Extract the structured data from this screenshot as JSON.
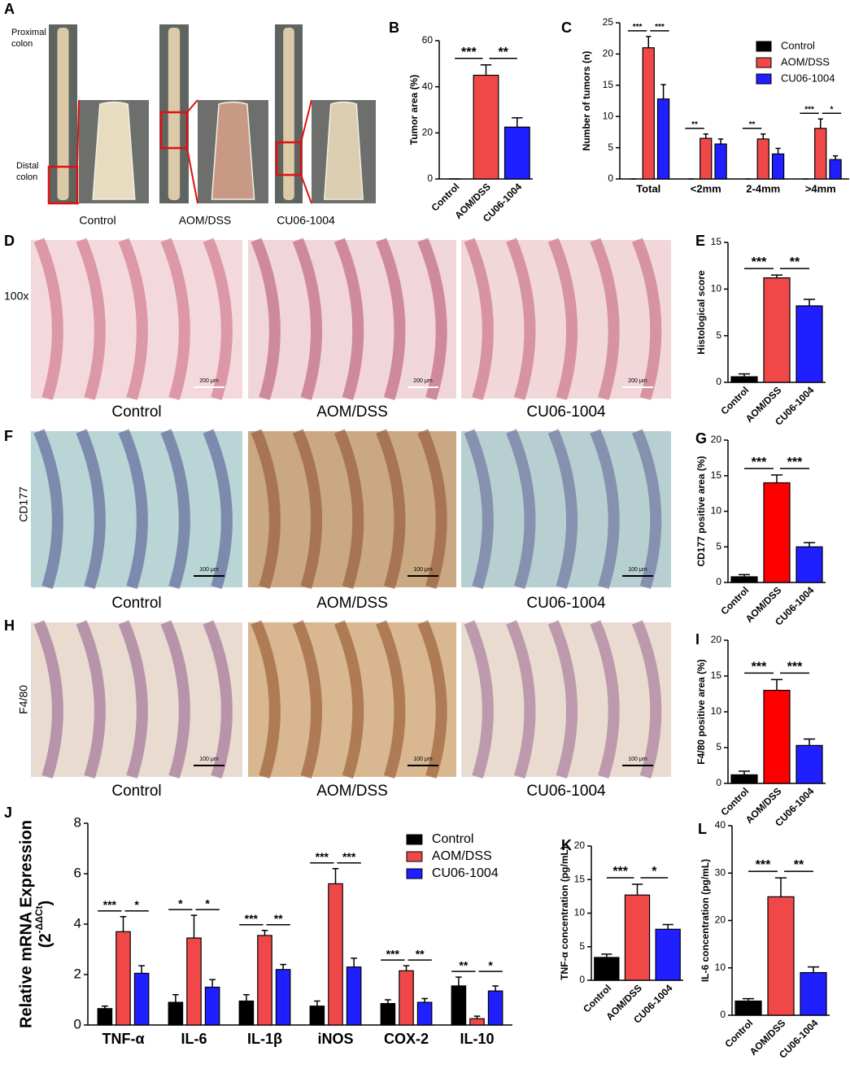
{
  "labels": [
    "A",
    "B",
    "C",
    "D",
    "E",
    "F",
    "G",
    "H",
    "I",
    "J",
    "K",
    "L"
  ],
  "panel_a": {
    "proximal": [
      "Proximal",
      "colon"
    ],
    "distal": [
      "Distal",
      "colon"
    ],
    "captions": [
      "Control",
      "AOM/DSS",
      "CU06-1004"
    ]
  },
  "panel_d": {
    "row_label": "100x",
    "captions": [
      "Control",
      "AOM/DSS",
      "CU06-1004"
    ],
    "scale_bars": [
      "200 μm",
      "200 μm",
      "200 μm"
    ]
  },
  "panel_f": {
    "row_label": "CD177",
    "captions": [
      "Control",
      "AOM/DSS",
      "CU06-1004"
    ],
    "scale_bars": [
      "100 μm",
      "100 μm",
      "100 μm"
    ]
  },
  "panel_h": {
    "row_label": "F4/80",
    "captions": [
      "Control",
      "AOM/DSS",
      "CU06-1004"
    ],
    "scale_bars": [
      "100 μm",
      "100 μm",
      "100 μm"
    ]
  },
  "chart_data": [
    {
      "type": "bar",
      "ylabel": "Tumor area (%)",
      "categories": [
        "Control",
        "AOM/DSS",
        "CU06-1004"
      ],
      "values": [
        0,
        45,
        22.5
      ],
      "errors": [
        0,
        4.5,
        4
      ],
      "colors": [
        "#000000",
        "#f04848",
        "#1f1fff"
      ],
      "ylim": [
        0,
        60
      ],
      "yticks": [
        0,
        20,
        40,
        60
      ],
      "significance": [
        "***",
        "**"
      ]
    },
    {
      "type": "grouped_bar",
      "ylabel": "Number of tumors (n)",
      "categories": [
        "Total",
        "<2mm",
        "2-4mm",
        ">4mm"
      ],
      "legend": "upper right",
      "series": [
        {
          "name": "Control",
          "color": "#000000",
          "values": [
            0,
            0,
            0,
            0
          ],
          "errors": [
            0,
            0,
            0,
            0
          ]
        },
        {
          "name": "AOM/DSS",
          "color": "#f04848",
          "values": [
            21,
            6.5,
            6.4,
            8.1
          ],
          "errors": [
            1.8,
            0.7,
            0.8,
            1.5
          ]
        },
        {
          "name": "CU06-1004",
          "color": "#1f1fff",
          "values": [
            12.8,
            5.6,
            4,
            3.1
          ],
          "errors": [
            2.3,
            0.8,
            0.9,
            0.6
          ]
        }
      ],
      "ylim": [
        0,
        25
      ],
      "yticks": [
        0,
        5,
        10,
        15,
        20,
        25
      ],
      "significance": [
        [
          "***",
          "***"
        ],
        [
          "**",
          null
        ],
        [
          "**",
          null
        ],
        [
          "***",
          "*"
        ]
      ]
    },
    {
      "type": "bar",
      "ylabel": "Histological score",
      "categories": [
        "Control",
        "AOM/DSS",
        "CU06-1004"
      ],
      "values": [
        0.6,
        11.2,
        8.2
      ],
      "errors": [
        0.3,
        0.3,
        0.7
      ],
      "colors": [
        "#000000",
        "#f04848",
        "#1f1fff"
      ],
      "ylim": [
        0,
        15
      ],
      "yticks": [
        0,
        5,
        10,
        15
      ],
      "significance": [
        "***",
        "**"
      ]
    },
    {
      "type": "bar",
      "ylabel": "CD177 positive area (%)",
      "categories": [
        "Control",
        "AOM/DSS",
        "CU06-1004"
      ],
      "values": [
        0.8,
        14,
        5
      ],
      "errors": [
        0.3,
        1.1,
        0.6
      ],
      "colors": [
        "#000000",
        "#ff0000",
        "#1f1fff"
      ],
      "ylim": [
        0,
        20
      ],
      "yticks": [
        0,
        5,
        10,
        15,
        20
      ],
      "significance": [
        "***",
        "***"
      ]
    },
    {
      "type": "bar",
      "ylabel": "F4/80 positive area (%)",
      "categories": [
        "Control",
        "AOM/DSS",
        "CU06-1004"
      ],
      "values": [
        1.2,
        13,
        5.3
      ],
      "errors": [
        0.5,
        1.5,
        0.9
      ],
      "colors": [
        "#000000",
        "#ff0000",
        "#1f1fff"
      ],
      "ylim": [
        0,
        20
      ],
      "yticks": [
        0,
        5,
        10,
        15,
        20
      ],
      "significance": [
        "***",
        "***"
      ]
    },
    {
      "type": "grouped_bar",
      "ylabel": "Relative mRNA Expression",
      "ylabel_sub": {
        "base": "(2",
        "sup": "-ΔΔCt",
        "close": ")"
      },
      "categories": [
        "TNF-α",
        "IL-6",
        "IL-1β",
        "iNOS",
        "COX-2",
        "IL-10"
      ],
      "legend": "upper right",
      "series": [
        {
          "name": "Control",
          "color": "#000000",
          "values": [
            0.65,
            0.9,
            0.95,
            0.75,
            0.85,
            1.55
          ],
          "errors": [
            0.1,
            0.3,
            0.25,
            0.2,
            0.15,
            0.35
          ]
        },
        {
          "name": "AOM/DSS",
          "color": "#f04848",
          "values": [
            3.7,
            3.45,
            3.55,
            5.6,
            2.15,
            0.25
          ],
          "errors": [
            0.6,
            0.9,
            0.2,
            0.6,
            0.2,
            0.1
          ]
        },
        {
          "name": "CU06-1004",
          "color": "#1f1fff",
          "values": [
            2.05,
            1.5,
            2.2,
            2.3,
            0.9,
            1.35
          ],
          "errors": [
            0.3,
            0.3,
            0.2,
            0.35,
            0.15,
            0.2
          ]
        }
      ],
      "ylim": [
        0,
        8
      ],
      "yticks": [
        0,
        2,
        4,
        6,
        8
      ],
      "significance": [
        [
          "***",
          "*"
        ],
        [
          "*",
          "*"
        ],
        [
          "***",
          "**"
        ],
        [
          "***",
          "***"
        ],
        [
          "***",
          "**"
        ],
        [
          "**",
          "*"
        ]
      ]
    },
    {
      "type": "bar",
      "ylabel": "TNF-α concentration (pg/mL)",
      "categories": [
        "Control",
        "AOM/DSS",
        "CU06-1004"
      ],
      "values": [
        3.4,
        12.7,
        7.6
      ],
      "errors": [
        0.5,
        1.6,
        0.7
      ],
      "colors": [
        "#000000",
        "#f04848",
        "#1f1fff"
      ],
      "ylim": [
        0,
        20
      ],
      "yticks": [
        0,
        5,
        10,
        15,
        20
      ],
      "significance": [
        "***",
        "*"
      ]
    },
    {
      "type": "bar",
      "ylabel": "IL-6 concentration (pg/mL)",
      "categories": [
        "Control",
        "AOM/DSS",
        "CU06-1004"
      ],
      "values": [
        3,
        25,
        9
      ],
      "errors": [
        0.5,
        4,
        1.2
      ],
      "colors": [
        "#000000",
        "#f04848",
        "#1f1fff"
      ],
      "ylim": [
        0,
        40
      ],
      "yticks": [
        0,
        10,
        20,
        30,
        40
      ],
      "significance": [
        "***",
        "**"
      ]
    }
  ]
}
